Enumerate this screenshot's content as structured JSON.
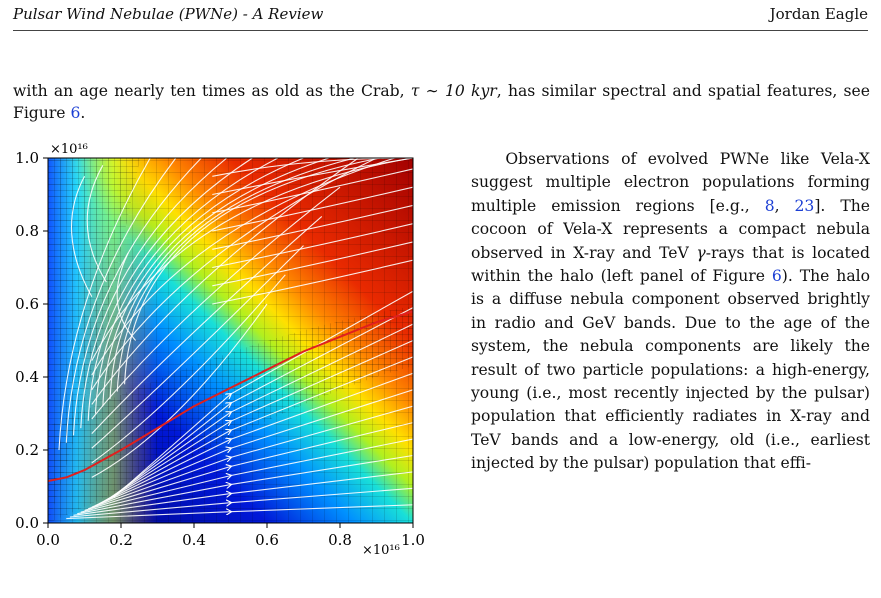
{
  "header": {
    "title": "Pulsar Wind Nebulae (PWNe) - A Review",
    "author": "Jordan Eagle"
  },
  "intro": {
    "part1": "with an age nearly ten times as old as the Crab, ",
    "tau": "τ ∼ 10 kyr",
    "part2": ", has similar spectral and spatial features, see Figure ",
    "fig_ref": "6",
    "part3": "."
  },
  "body": {
    "s1": "Observations of evolved PWNe like Vela-X suggest multiple electron populations forming multiple emission regions [e.g., ",
    "ref1": "8",
    "sep": ", ",
    "ref2": "23",
    "s2": "]. The cocoon of Vela-X represents a compact nebula observed in X-ray and TeV ",
    "gamma": "γ",
    "s3": "-rays that is located within the halo (left panel of Figure ",
    "fig_ref": "6",
    "s4": "). The halo is a diffuse nebula component observed brightly in radio and GeV bands. Due to the age of the system, the nebula components are likely the result of two particle populations: a high-energy, young (i.e., most recently injected by the pulsar) population that efficiently radiates in X-ray and TeV bands and a low-energy, old (i.e., earliest injected by the pulsar) population that effi-"
  },
  "chart_data": {
    "type": "heatmap",
    "x_ticks": [
      "0.0",
      "0.2",
      "0.4",
      "0.6",
      "0.8",
      "1.0"
    ],
    "y_ticks": [
      "0.0",
      "0.2",
      "0.4",
      "0.6",
      "0.8",
      "1.0"
    ],
    "x_multiplier": "×10¹⁶",
    "y_multiplier": "×10¹⁶",
    "xlim": [
      0,
      1.0
    ],
    "ylim": [
      0,
      1.0
    ],
    "colormap": "jet",
    "overlays": [
      "velocity streamlines (white)",
      "adaptive mesh grid (black)",
      "contact discontinuity (red)"
    ],
    "red_line": {
      "x": [
        0.0,
        0.05,
        0.1,
        0.2,
        0.3,
        0.4,
        0.5,
        0.6,
        0.7,
        0.8,
        0.9,
        1.0
      ],
      "y": [
        0.115,
        0.125,
        0.145,
        0.2,
        0.26,
        0.32,
        0.37,
        0.42,
        0.47,
        0.51,
        0.55,
        0.58
      ]
    },
    "colors": {
      "streamline": "#ffffff",
      "grid": "#000000",
      "red_line": "#e0201e"
    }
  }
}
